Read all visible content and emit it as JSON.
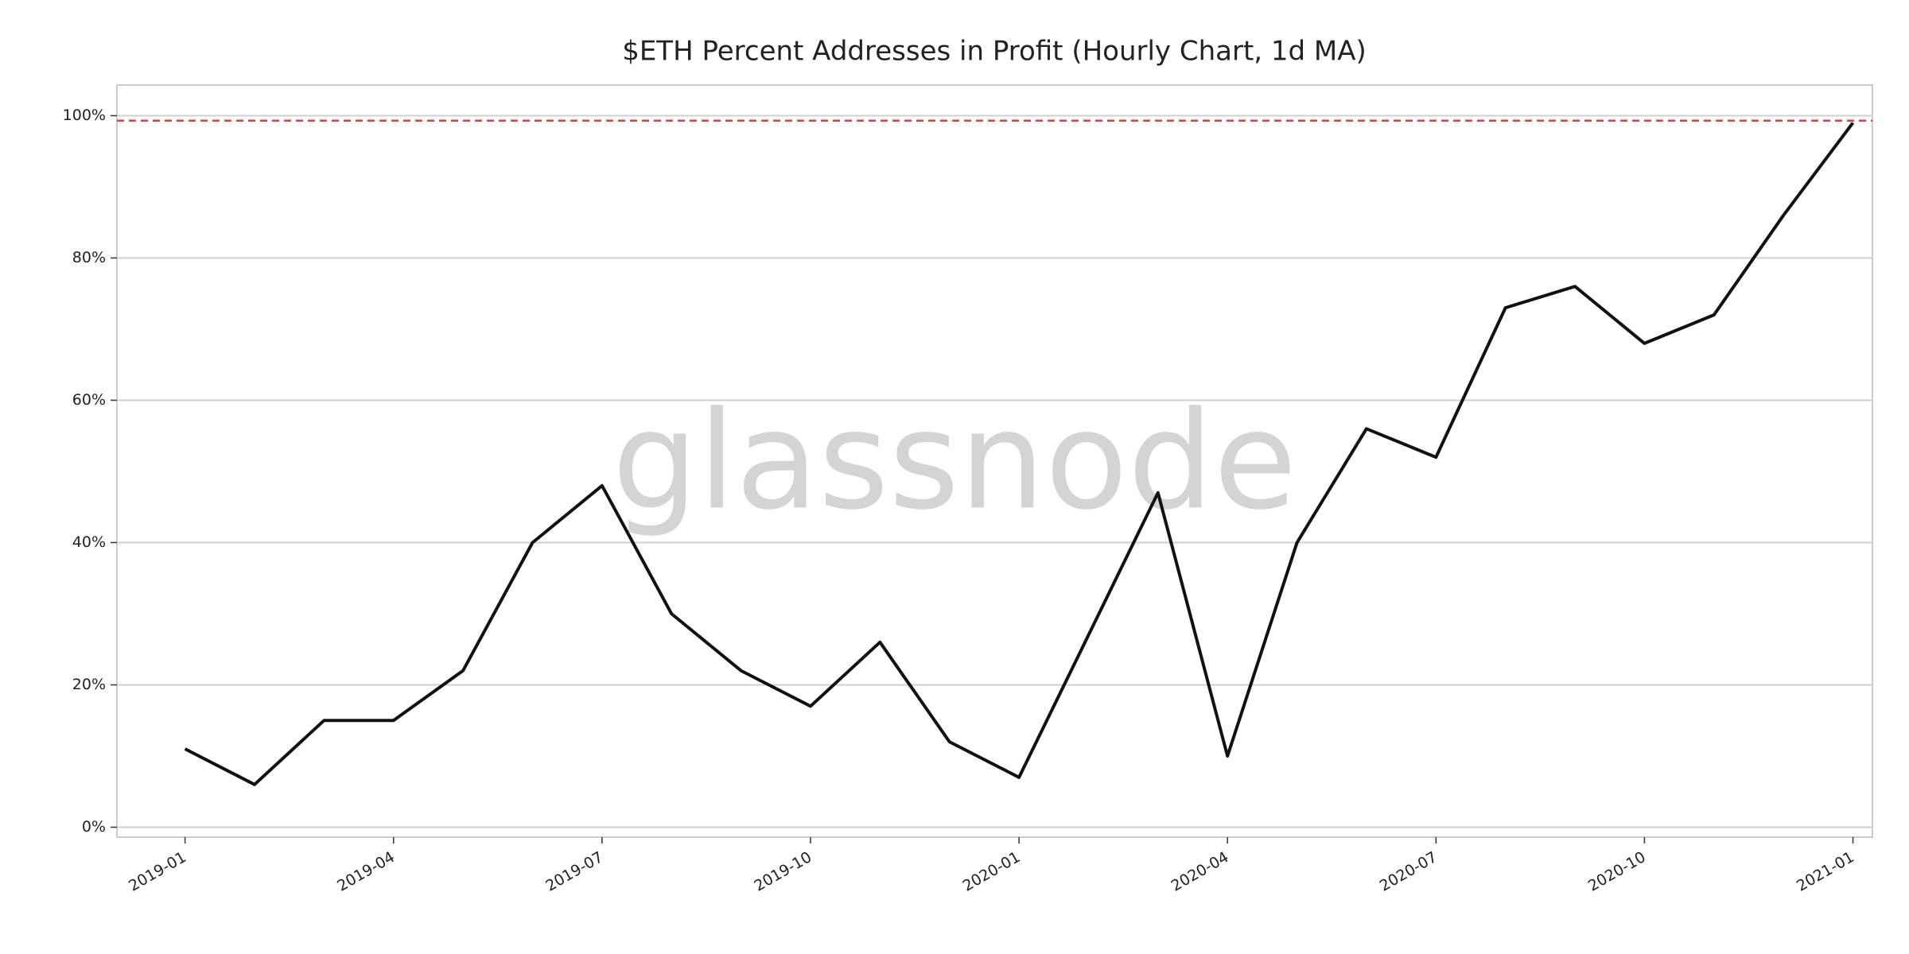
{
  "chart_data": {
    "type": "line",
    "title": "$ETH Percent Addresses in Profit (Hourly Chart, 1d MA)",
    "watermark": "glassnode",
    "x": [
      "2019-01",
      "2019-02",
      "2019-03",
      "2019-04",
      "2019-05",
      "2019-06",
      "2019-07",
      "2019-08",
      "2019-09",
      "2019-10",
      "2019-11",
      "2019-12",
      "2020-01",
      "2020-02",
      "2020-03",
      "2020-04",
      "2020-05",
      "2020-06",
      "2020-07",
      "2020-08",
      "2020-09",
      "2020-10",
      "2020-11",
      "2020-12",
      "2021-01"
    ],
    "values": [
      11,
      6,
      15,
      15,
      22,
      40,
      48,
      30,
      22,
      17,
      26,
      12,
      7,
      27,
      47,
      10,
      40,
      56,
      52,
      73,
      76,
      68,
      72,
      86,
      99
    ],
    "color": "#111111",
    "xticks": [
      "2019-01",
      "2019-04",
      "2019-07",
      "2019-10",
      "2020-01",
      "2020-04",
      "2020-07",
      "2020-10",
      "2021-01"
    ],
    "ylim": [
      -1.4,
      104.3
    ],
    "yticks": [
      {
        "value": 0,
        "label": "0%"
      },
      {
        "value": 20,
        "label": "20%"
      },
      {
        "value": 40,
        "label": "40%"
      },
      {
        "value": 60,
        "label": "60%"
      },
      {
        "value": 80,
        "label": "80%"
      },
      {
        "value": 100,
        "label": "100%"
      }
    ],
    "grid": true,
    "reference_line": {
      "value": 99.3,
      "color": "#e04040",
      "style": "dashed"
    }
  }
}
